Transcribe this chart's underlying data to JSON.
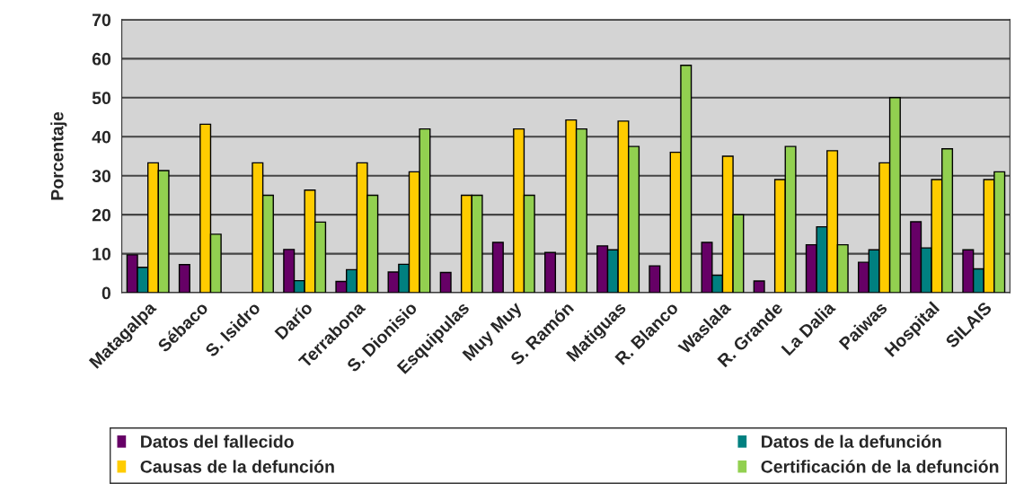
{
  "chart_data": {
    "type": "bar",
    "ylabel": "Porcentaje",
    "categories": [
      "Matagalpa",
      "Sébaco",
      "S. Isidro",
      "Darío",
      "Terrabona",
      "S. Dionisio",
      "Esquipulas",
      "Muy Muy",
      "S. Ramón",
      "Matiguas",
      "R. Blanco",
      "Waslala",
      "R. Grande",
      "La Dalia",
      "Paiwas",
      "Hospital",
      "SILAIS"
    ],
    "series": [
      {
        "name": "Datos del fallecido",
        "color": "#660066",
        "values": [
          9.7,
          7.2,
          null,
          11.1,
          2.9,
          5.3,
          5.2,
          12.9,
          10.3,
          12,
          6.9,
          12.9,
          3,
          12.3,
          7.8,
          18.2,
          11
        ]
      },
      {
        "name": "Datos de la defunción",
        "color": "#008080",
        "values": [
          6.5,
          null,
          null,
          3.1,
          5.9,
          7.3,
          null,
          null,
          null,
          11,
          null,
          4.5,
          null,
          16.9,
          11,
          11.5,
          6.1
        ]
      },
      {
        "name": "Causas de la defunción",
        "color": "#ffcc00",
        "values": [
          33.3,
          43.2,
          33.3,
          26.3,
          33.3,
          31,
          25,
          42,
          44.3,
          44,
          36,
          35,
          29,
          36.4,
          33.3,
          29,
          29
        ]
      },
      {
        "name": "Certificación de la defunción",
        "color": "#92d050",
        "values": [
          31.3,
          15,
          25,
          18.1,
          25,
          42,
          25,
          25,
          42,
          37.5,
          58.3,
          20,
          37.5,
          12.3,
          50,
          36.9,
          31
        ]
      }
    ],
    "ylim": [
      0,
      70
    ],
    "yticks": [
      0,
      10,
      20,
      30,
      40,
      50,
      60,
      70
    ],
    "grid": "y",
    "legend": "bottom"
  }
}
